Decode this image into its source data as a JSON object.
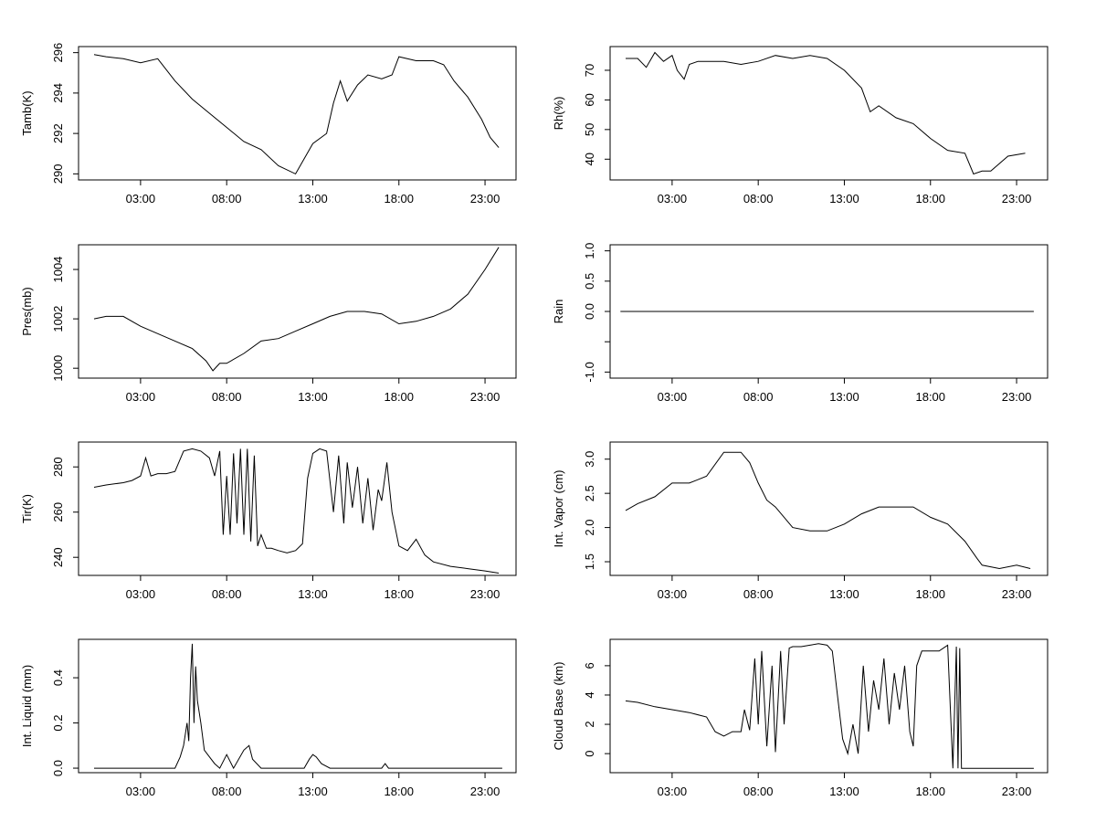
{
  "figure": {
    "x_ticks": [
      "03:00",
      "08:00",
      "13:00",
      "18:00",
      "23:00"
    ],
    "x_tick_hours": [
      3,
      8,
      13,
      18,
      23
    ],
    "xlim": [
      -0.6,
      24.8
    ]
  },
  "chart_data": [
    {
      "type": "line",
      "ylabel": "Tamb(K)",
      "ylim": [
        289.7,
        296.3
      ],
      "yticks": [
        290,
        292,
        294,
        296
      ],
      "ytick_labels": [
        "290",
        "292",
        "294",
        "296"
      ],
      "x": [
        0.3,
        1.0,
        2.0,
        3.0,
        4.0,
        5.0,
        6.0,
        7.0,
        8.0,
        9.0,
        10.0,
        11.0,
        12.0,
        13.0,
        13.8,
        14.2,
        14.6,
        15.0,
        15.6,
        16.2,
        17.0,
        17.6,
        18.0,
        19.0,
        20.0,
        20.6,
        21.2,
        22.0,
        22.8,
        23.3,
        23.8
      ],
      "y": [
        295.9,
        295.8,
        295.7,
        295.5,
        295.7,
        294.6,
        293.7,
        293.0,
        292.3,
        291.6,
        291.2,
        290.4,
        290.0,
        291.5,
        292.0,
        293.5,
        294.6,
        293.6,
        294.4,
        294.9,
        294.7,
        294.9,
        295.8,
        295.6,
        295.6,
        295.4,
        294.6,
        293.8,
        292.7,
        291.8,
        291.3
      ]
    },
    {
      "type": "line",
      "ylabel": "Rh(%)",
      "ylim": [
        33,
        78
      ],
      "yticks": [
        40,
        50,
        60,
        70
      ],
      "ytick_labels": [
        "40",
        "50",
        "60",
        "70"
      ],
      "x": [
        0.3,
        1.0,
        1.5,
        2.0,
        2.5,
        3.0,
        3.3,
        3.7,
        4.0,
        4.5,
        5.0,
        6.0,
        7.0,
        8.0,
        9.0,
        10.0,
        11.0,
        12.0,
        13.0,
        14.0,
        14.5,
        15.0,
        16.0,
        17.0,
        18.0,
        19.0,
        20.0,
        20.5,
        21.0,
        21.5,
        22.5,
        23.5
      ],
      "y": [
        74,
        74,
        71,
        76,
        73,
        75,
        70,
        67,
        72,
        73,
        73,
        73,
        72,
        73,
        75,
        74,
        75,
        74,
        70,
        64,
        56,
        58,
        54,
        52,
        47,
        43,
        42,
        35,
        36,
        36,
        41,
        42
      ]
    },
    {
      "type": "line",
      "ylabel": "Pres(mb)",
      "ylim": [
        999.6,
        1005.0
      ],
      "yticks": [
        1000,
        1002,
        1004
      ],
      "ytick_labels": [
        "1000",
        "1002",
        "1004"
      ],
      "x": [
        0.3,
        1.0,
        2.0,
        3.0,
        4.0,
        5.0,
        6.0,
        6.8,
        7.2,
        7.6,
        8.0,
        9.0,
        10.0,
        11.0,
        12.0,
        13.0,
        14.0,
        15.0,
        16.0,
        17.0,
        18.0,
        19.0,
        20.0,
        21.0,
        22.0,
        23.0,
        23.8
      ],
      "y": [
        1002.0,
        1002.1,
        1002.1,
        1001.7,
        1001.4,
        1001.1,
        1000.8,
        1000.3,
        999.9,
        1000.2,
        1000.2,
        1000.6,
        1001.1,
        1001.2,
        1001.5,
        1001.8,
        1002.1,
        1002.3,
        1002.3,
        1002.2,
        1001.8,
        1001.9,
        1002.1,
        1002.4,
        1003.0,
        1004.0,
        1004.9
      ]
    },
    {
      "type": "line",
      "ylabel": "Rain",
      "ylim": [
        -1.1,
        1.1
      ],
      "yticks": [
        -1.0,
        -0.5,
        0.0,
        0.5,
        1.0
      ],
      "ytick_labels": [
        "-1.0",
        "",
        "0.0",
        "0.5",
        "1.0"
      ],
      "x": [
        0.0,
        24.0
      ],
      "y": [
        0.0,
        0.0
      ]
    },
    {
      "type": "line",
      "ylabel": "Tir(K)",
      "ylim": [
        232,
        291
      ],
      "yticks": [
        240,
        260,
        280
      ],
      "ytick_labels": [
        "240",
        "260",
        "280"
      ],
      "x": [
        0.3,
        1.0,
        2.0,
        2.5,
        3.0,
        3.3,
        3.6,
        4.0,
        4.5,
        5.0,
        5.5,
        6.0,
        6.5,
        7.0,
        7.3,
        7.6,
        7.8,
        8.0,
        8.2,
        8.4,
        8.6,
        8.8,
        9.0,
        9.2,
        9.4,
        9.6,
        9.8,
        10.0,
        10.3,
        10.6,
        11.0,
        11.5,
        12.0,
        12.4,
        12.7,
        13.0,
        13.4,
        13.8,
        14.2,
        14.5,
        14.8,
        15.0,
        15.3,
        15.6,
        15.9,
        16.2,
        16.5,
        16.8,
        17.0,
        17.3,
        17.6,
        18.0,
        18.5,
        19.0,
        19.5,
        20.0,
        21.0,
        22.0,
        23.0,
        23.8
      ],
      "y": [
        271,
        272,
        273,
        274,
        276,
        284,
        276,
        277,
        277,
        278,
        287,
        288,
        287,
        284,
        276,
        287,
        250,
        276,
        250,
        286,
        255,
        288,
        250,
        288,
        247,
        285,
        245,
        250,
        244,
        244,
        243,
        242,
        243,
        246,
        275,
        286,
        288,
        287,
        260,
        285,
        255,
        282,
        262,
        280,
        255,
        275,
        252,
        270,
        265,
        282,
        260,
        245,
        243,
        248,
        241,
        238,
        236,
        235,
        234,
        233
      ]
    },
    {
      "type": "line",
      "ylabel": "Int. Vapor (cm)",
      "ylim": [
        1.3,
        3.25
      ],
      "yticks": [
        1.5,
        2.0,
        2.5,
        3.0
      ],
      "ytick_labels": [
        "1.5",
        "2.0",
        "2.5",
        "3.0"
      ],
      "x": [
        0.3,
        1.0,
        2.0,
        3.0,
        4.0,
        5.0,
        6.0,
        7.0,
        7.5,
        8.0,
        8.5,
        9.0,
        10.0,
        11.0,
        12.0,
        13.0,
        14.0,
        15.0,
        16.0,
        17.0,
        18.0,
        19.0,
        20.0,
        20.7,
        21.0,
        22.0,
        23.0,
        23.8
      ],
      "y": [
        2.25,
        2.35,
        2.45,
        2.65,
        2.65,
        2.75,
        3.1,
        3.1,
        2.95,
        2.65,
        2.4,
        2.3,
        2.0,
        1.95,
        1.95,
        2.05,
        2.2,
        2.3,
        2.3,
        2.3,
        2.15,
        2.05,
        1.8,
        1.55,
        1.45,
        1.4,
        1.45,
        1.4
      ]
    },
    {
      "type": "line",
      "ylabel": "Int. Liquid (mm)",
      "ylim": [
        -0.02,
        0.57
      ],
      "yticks": [
        0.0,
        0.2,
        0.4
      ],
      "ytick_labels": [
        "0.0",
        "0.2",
        "0.4"
      ],
      "x": [
        0.3,
        5.0,
        5.3,
        5.5,
        5.7,
        5.8,
        5.9,
        6.0,
        6.1,
        6.2,
        6.3,
        6.5,
        6.7,
        7.0,
        7.3,
        7.6,
        8.0,
        8.4,
        9.0,
        9.3,
        9.5,
        10.0,
        12.5,
        12.8,
        13.0,
        13.2,
        13.5,
        14.0,
        17.0,
        17.2,
        17.4,
        18.0,
        24.0
      ],
      "y": [
        0.0,
        0.0,
        0.05,
        0.1,
        0.2,
        0.12,
        0.4,
        0.55,
        0.2,
        0.45,
        0.3,
        0.2,
        0.08,
        0.05,
        0.02,
        0.0,
        0.06,
        0.0,
        0.08,
        0.1,
        0.04,
        0.0,
        0.0,
        0.04,
        0.06,
        0.05,
        0.02,
        0.0,
        0.0,
        0.02,
        0.0,
        0.0,
        0.0
      ]
    },
    {
      "type": "line",
      "ylabel": "Cloud Base (km)",
      "ylim": [
        -1.3,
        7.8
      ],
      "yticks": [
        0,
        2,
        4,
        6
      ],
      "ytick_labels": [
        "0",
        "2",
        "4",
        "6"
      ],
      "x": [
        0.3,
        1.0,
        2.0,
        3.0,
        4.0,
        5.0,
        5.5,
        6.0,
        6.5,
        7.0,
        7.2,
        7.5,
        7.8,
        8.0,
        8.2,
        8.5,
        8.8,
        9.0,
        9.3,
        9.5,
        9.8,
        10.0,
        10.5,
        11.0,
        11.5,
        12.0,
        12.3,
        12.6,
        12.9,
        13.2,
        13.5,
        13.8,
        14.1,
        14.4,
        14.7,
        15.0,
        15.3,
        15.6,
        15.9,
        16.2,
        16.5,
        16.8,
        17.0,
        17.2,
        17.5,
        18.0,
        18.5,
        19.0,
        19.3,
        19.5,
        19.6,
        19.7,
        19.8,
        20.0,
        24.0
      ],
      "y": [
        3.6,
        3.5,
        3.2,
        3.0,
        2.8,
        2.5,
        1.5,
        1.2,
        1.5,
        1.5,
        3.0,
        1.6,
        6.5,
        2.0,
        7.0,
        0.5,
        6.0,
        0.1,
        7.0,
        2.0,
        7.2,
        7.3,
        7.3,
        7.4,
        7.5,
        7.4,
        7.0,
        4.0,
        1.0,
        0.0,
        2.0,
        0.0,
        6.0,
        1.5,
        5.0,
        3.0,
        6.5,
        2.0,
        5.5,
        3.0,
        6.0,
        1.5,
        0.5,
        6.0,
        7.0,
        7.0,
        7.0,
        7.4,
        -1.0,
        7.3,
        -1.0,
        7.2,
        -1.0,
        -1.0,
        -1.0
      ]
    }
  ]
}
